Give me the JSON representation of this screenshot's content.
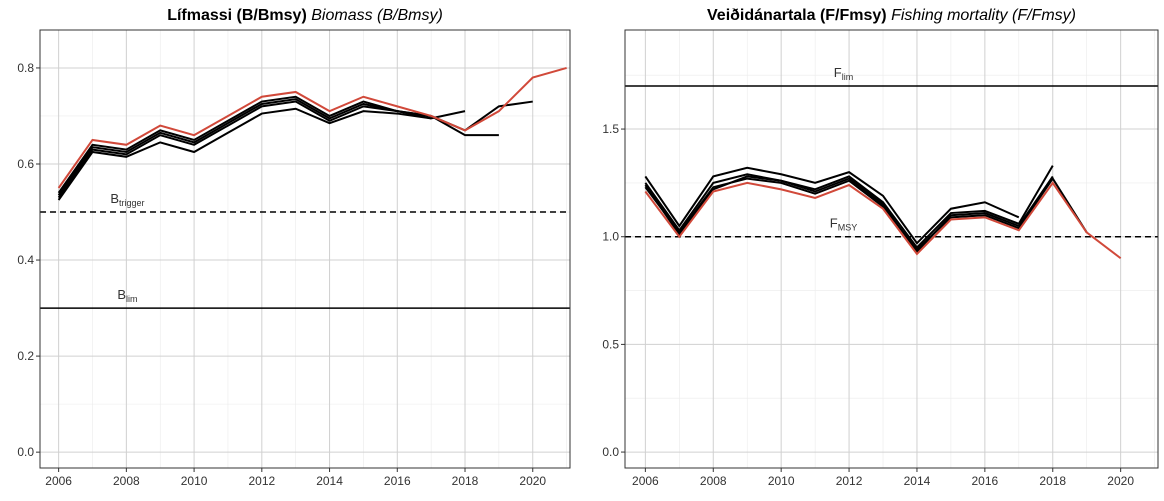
{
  "chart_data": [
    {
      "type": "line",
      "title": "Lífmassi (B/Bmsy)",
      "subtitle": "Biomass (B/Bmsy)",
      "x": [
        2006,
        2007,
        2008,
        2009,
        2010,
        2011,
        2012,
        2013,
        2014,
        2015,
        2016,
        2017,
        2018,
        2019,
        2020,
        2021
      ],
      "xlim": [
        2005.45,
        2021.1
      ],
      "xticks": [
        2006,
        2008,
        2010,
        2012,
        2014,
        2016,
        2018,
        2020
      ],
      "xminor": [
        2007,
        2009,
        2011,
        2013,
        2015,
        2017,
        2019,
        2021
      ],
      "ylim": [
        -0.033,
        0.879
      ],
      "yticks": [
        {
          "value": 0,
          "label": "0.0"
        },
        0.2,
        0.4,
        0.6,
        0.8
      ],
      "yminor": [
        0.1,
        0.3,
        0.5,
        0.7
      ],
      "grid": true,
      "hlines": [
        {
          "y": 0.5,
          "style": "dashed",
          "label": "B",
          "label_sub": "trigger"
        },
        {
          "y": 0.3,
          "style": "solid",
          "label": "B",
          "label_sub": "lim"
        }
      ],
      "series": [
        {
          "color": "#000000",
          "values": [
            0.525,
            0.625,
            0.615,
            0.645,
            0.625,
            0.665,
            0.705,
            0.715,
            0.685,
            0.71,
            0.705,
            0.695,
            null,
            null,
            null,
            null
          ]
        },
        {
          "color": "#000000",
          "values": [
            0.54,
            0.64,
            0.63,
            0.67,
            0.65,
            0.69,
            0.73,
            0.74,
            0.7,
            0.73,
            0.71,
            0.695,
            0.71,
            null,
            null,
            null
          ]
        },
        {
          "color": "#000000",
          "values": [
            0.53,
            0.63,
            0.62,
            0.66,
            0.64,
            0.68,
            0.72,
            0.73,
            0.69,
            0.72,
            0.71,
            0.7,
            0.66,
            0.66,
            null,
            null
          ]
        },
        {
          "color": "#000000",
          "values": [
            0.535,
            0.635,
            0.625,
            0.665,
            0.645,
            0.685,
            0.725,
            0.735,
            0.695,
            0.725,
            0.71,
            0.7,
            0.67,
            0.72,
            0.73,
            null
          ]
        },
        {
          "color": "#d1493a",
          "values": [
            0.55,
            0.65,
            0.64,
            0.68,
            0.66,
            0.7,
            0.74,
            0.75,
            0.71,
            0.74,
            0.72,
            0.7,
            0.67,
            0.71,
            0.78,
            0.8
          ]
        }
      ]
    },
    {
      "type": "line",
      "title": "Veiðidánartala (F/Fmsy)",
      "subtitle": "Fishing mortality (F/Fmsy)",
      "x": [
        2006,
        2007,
        2008,
        2009,
        2010,
        2011,
        2012,
        2013,
        2014,
        2015,
        2016,
        2017,
        2018,
        2019,
        2020
      ],
      "xlim": [
        2005.4,
        2021.1
      ],
      "xticks": [
        2006,
        2008,
        2010,
        2012,
        2014,
        2016,
        2018,
        2020
      ],
      "xminor": [
        2007,
        2009,
        2011,
        2013,
        2015,
        2017,
        2019,
        2021
      ],
      "ylim": [
        -0.074,
        1.96
      ],
      "yticks": [
        {
          "value": 0,
          "label": "0.0"
        },
        0.5,
        {
          "value": 1,
          "label": "1.0"
        },
        1.5
      ],
      "yminor": [
        0.25,
        0.75,
        1.25,
        1.75
      ],
      "grid": true,
      "hlines": [
        {
          "y": 1.7,
          "style": "solid",
          "label": "F",
          "label_sub": "lim"
        },
        {
          "y": 1,
          "style": "dashed",
          "label": "F",
          "label_sub": "MSY"
        }
      ],
      "series": [
        {
          "color": "#000000",
          "values": [
            1.28,
            1.05,
            1.28,
            1.32,
            1.29,
            1.25,
            1.3,
            1.19,
            0.97,
            1.13,
            1.16,
            1.09,
            null,
            null,
            null
          ]
        },
        {
          "color": "#000000",
          "values": [
            1.25,
            1.03,
            1.25,
            1.29,
            1.26,
            1.22,
            1.28,
            1.16,
            0.95,
            1.11,
            1.12,
            1.06,
            1.33,
            null,
            null
          ]
        },
        {
          "color": "#000000",
          "values": [
            1.24,
            1.01,
            1.22,
            1.28,
            1.26,
            1.21,
            1.27,
            1.15,
            0.93,
            1.1,
            1.11,
            1.05,
            1.28,
            null,
            null
          ]
        },
        {
          "color": "#000000",
          "values": [
            1.23,
            1.02,
            1.23,
            1.27,
            1.25,
            1.2,
            1.26,
            1.14,
            0.94,
            1.09,
            1.1,
            1.04,
            1.27,
            1.02,
            null
          ]
        },
        {
          "color": "#d1493a",
          "values": [
            1.21,
            1.0,
            1.21,
            1.25,
            1.22,
            1.18,
            1.24,
            1.13,
            0.92,
            1.08,
            1.09,
            1.03,
            1.25,
            1.02,
            0.9
          ]
        }
      ]
    }
  ]
}
